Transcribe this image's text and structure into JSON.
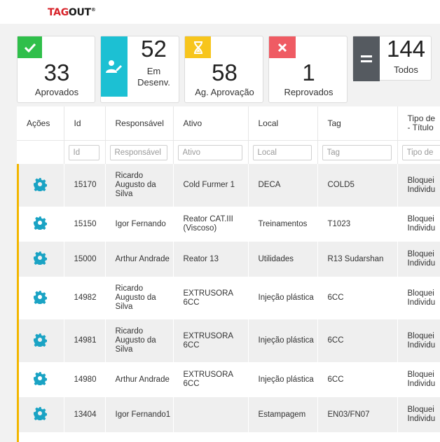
{
  "header": {
    "logo_tag": "TAG",
    "logo_out": "OUT",
    "logo_reg": "®"
  },
  "summary": [
    {
      "count": "33",
      "label": "Aprovados",
      "icon": "check-icon",
      "color": "#2fbf4a"
    },
    {
      "count": "52",
      "label_line1": "Em",
      "label_line2": "Desenv.",
      "icon": "user-edit-icon",
      "color": "#1cc0d3"
    },
    {
      "count": "58",
      "label": "Ag. Aprovação",
      "icon": "hourglass-icon",
      "color": "#f7c51c"
    },
    {
      "count": "1",
      "label": "Reprovados",
      "icon": "close-icon",
      "color": "#ef5b63"
    },
    {
      "count": "144",
      "label": "Todos",
      "icon": "equals-icon",
      "color": "#555a60"
    }
  ],
  "table": {
    "columns": [
      "Ações",
      "Id",
      "Responsável",
      "Ativo",
      "Local",
      "Tag",
      "Tipo de - Título"
    ],
    "column_line1": "Tipo de",
    "column_line2": "- Título",
    "filters": [
      "Id",
      "Responsável",
      "Ativo",
      "Local",
      "Tag",
      "Tipo de"
    ],
    "rows": [
      {
        "id": "15170",
        "responsavel": "Ricardo Augusto da Silva",
        "ativo": "Cold Furmer 1",
        "local": "DECA",
        "tag": "COLD5",
        "tipo_l1": "Bloquei",
        "tipo_l2": "Individu"
      },
      {
        "id": "15150",
        "responsavel": "Igor Fernando",
        "ativo": "Reator CAT.III (Viscoso)",
        "local": "Treinamentos",
        "tag": "T1023",
        "tipo_l1": "Bloquei",
        "tipo_l2": "Individu"
      },
      {
        "id": "15000",
        "responsavel": "Arthur Andrade",
        "ativo": "Reator 13",
        "local": "Utilidades",
        "tag": "R13 Sudarshan",
        "tipo_l1": "Bloquei",
        "tipo_l2": "Individu"
      },
      {
        "id": "14982",
        "responsavel": "Ricardo Augusto da Silva",
        "ativo": "EXTRUSORA 6CC",
        "local": "Injeção plástica",
        "tag": "6CC",
        "tipo_l1": "Bloquei",
        "tipo_l2": "Individu"
      },
      {
        "id": "14981",
        "responsavel": "Ricardo Augusto da Silva",
        "ativo": "EXTRUSORA 6CC",
        "local": "Injeção plástica",
        "tag": "6CC",
        "tipo_l1": "Bloquei",
        "tipo_l2": "Individu"
      },
      {
        "id": "14980",
        "responsavel": "Arthur Andrade",
        "ativo": "EXTRUSORA 6CC",
        "local": "Injeção plástica",
        "tag": "6CC",
        "tipo_l1": "Bloquei",
        "tipo_l2": "Individu"
      },
      {
        "id": "13404",
        "responsavel": "Igor Fernando1",
        "ativo": "",
        "local": "Estampagem",
        "tag": "EN03/FN07",
        "tipo_l1": "Bloquei",
        "tipo_l2": "Individu"
      }
    ],
    "row_action_icon": "gear-icon",
    "gear_color": "#1aa3c4",
    "status_bar_color": "#f2b600"
  }
}
